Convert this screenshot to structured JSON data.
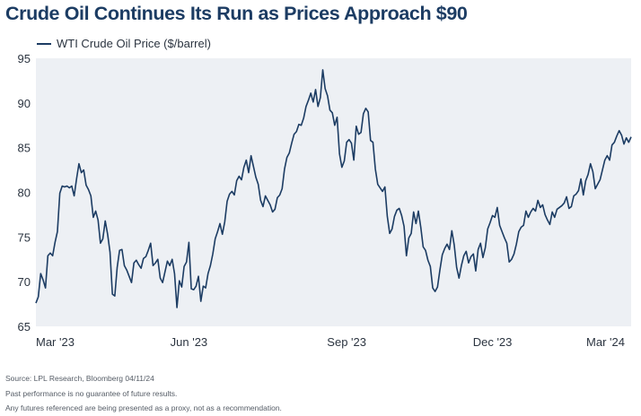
{
  "title": "Crude Oil Continues Its Run as Prices Approach $90",
  "footnotes": {
    "source": "Source: LPL Research, Bloomberg 04/11/24",
    "disclaimer1": "Past performance is no guarantee of future results.",
    "disclaimer2": "Any futures referenced are being presented as a proxy, not as a recommendation."
  },
  "colors": {
    "line": "#1c3c63",
    "plot_background": "#edf0f4",
    "title": "#1c3c63"
  },
  "chart_data": {
    "type": "line",
    "title": "Crude Oil Continues Its Run as Prices Approach $90",
    "ylabel": "",
    "xlabel": "",
    "ylim": [
      65,
      95
    ],
    "yticks": [
      65,
      70,
      75,
      80,
      85,
      90,
      95
    ],
    "xticks": [
      {
        "label": "Mar '23",
        "index": 0
      },
      {
        "label": "Jun '23",
        "index": 64
      },
      {
        "label": "Sep '23",
        "index": 130
      },
      {
        "label": "Dec '23",
        "index": 191
      },
      {
        "label": "Mar '24",
        "index": 254
      }
    ],
    "grid": false,
    "legend": "top-left",
    "series": [
      {
        "name": "WTI Crude Oil Price ($/barrel)",
        "values": [
          67.6,
          68.3,
          70.9,
          70.2,
          69.3,
          72.9,
          73.2,
          72.9,
          74.4,
          75.6,
          79.9,
          80.7,
          80.6,
          80.7,
          80.5,
          80.7,
          79.6,
          81.5,
          83.2,
          82.2,
          82.5,
          80.8,
          80.3,
          79.6,
          77.2,
          77.9,
          76.9,
          74.3,
          74.8,
          76.8,
          75.3,
          73.3,
          68.6,
          68.4,
          71.6,
          73.5,
          73.6,
          71.8,
          71.3,
          70.6,
          69.9,
          72.1,
          72.4,
          71.9,
          71.5,
          72.6,
          72.8,
          73.5,
          74.3,
          71.8,
          72.1,
          72.5,
          70.4,
          69.9,
          71.1,
          72.3,
          71.8,
          72.5,
          70.9,
          67.1,
          70.1,
          69.4,
          71.7,
          72.2,
          74.4,
          69.2,
          69.1,
          69.5,
          70.6,
          67.8,
          69.5,
          69.3,
          70.9,
          71.8,
          73.1,
          74.8,
          75.6,
          76.5,
          75.3,
          76.7,
          79.0,
          79.8,
          80.1,
          79.7,
          81.3,
          81.8,
          81.4,
          82.8,
          83.6,
          82.2,
          84.1,
          82.9,
          81.7,
          80.9,
          79.1,
          78.4,
          79.6,
          79.1,
          78.6,
          77.8,
          78.1,
          79.4,
          79.7,
          80.4,
          82.6,
          83.9,
          84.4,
          85.5,
          86.5,
          86.8,
          87.6,
          87.5,
          88.3,
          89.6,
          90.3,
          91.1,
          90.1,
          91.5,
          89.6,
          90.6,
          93.7,
          91.6,
          90.8,
          89.2,
          88.9,
          87.5,
          88.4,
          84.3,
          82.8,
          83.5,
          85.6,
          85.9,
          85.5,
          83.6,
          87.4,
          86.5,
          86.7,
          88.8,
          89.4,
          89.0,
          85.8,
          85.6,
          82.6,
          80.9,
          80.5,
          80.1,
          80.6,
          77.3,
          75.4,
          75.9,
          77.3,
          78.0,
          78.2,
          77.4,
          76.2,
          72.9,
          74.9,
          75.4,
          77.8,
          76.5,
          77.9,
          76.1,
          73.9,
          73.5,
          72.4,
          71.7,
          69.3,
          68.9,
          69.4,
          71.3,
          73.0,
          73.7,
          74.2,
          73.6,
          75.7,
          74.1,
          71.6,
          70.4,
          71.8,
          72.9,
          73.4,
          72.1,
          72.8,
          73.1,
          71.2,
          73.6,
          74.3,
          72.7,
          73.8,
          75.9,
          76.6,
          77.4,
          77.2,
          78.3,
          76.3,
          75.6,
          74.9,
          74.3,
          72.2,
          72.5,
          73.1,
          74.2,
          75.6,
          76.1,
          76.3,
          77.9,
          77.2,
          77.8,
          78.2,
          77.9,
          79.1,
          78.3,
          78.6,
          77.5,
          76.9,
          76.4,
          77.8,
          77.2,
          78.1,
          78.3,
          78.5,
          78.8,
          79.5,
          78.2,
          78.4,
          79.6,
          79.8,
          80.2,
          81.5,
          79.7,
          81.3,
          82.0,
          83.2,
          82.3,
          80.4,
          80.9,
          81.4,
          82.5,
          83.6,
          84.1,
          83.6,
          85.3,
          85.6,
          86.3,
          86.9,
          86.4,
          85.4,
          86.1,
          85.6,
          86.2
        ]
      }
    ]
  }
}
